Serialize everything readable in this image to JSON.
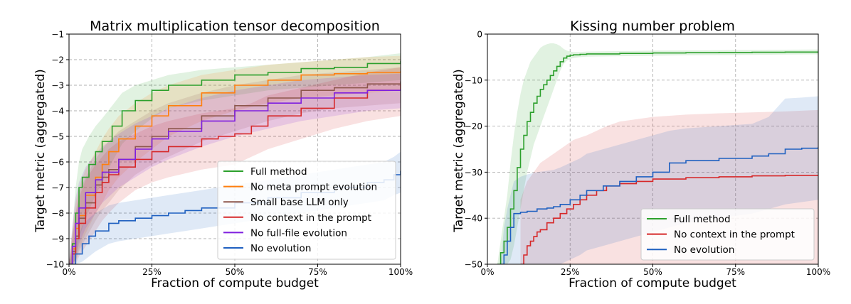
{
  "chart_data": [
    {
      "type": "line",
      "title": "Matrix multiplication tensor decomposition",
      "xlabel": "Fraction of compute budget",
      "ylabel": "Target metric (aggregated)",
      "xlim": [
        0,
        100
      ],
      "ylim": [
        -10,
        -1
      ],
      "x_ticks": [
        0,
        25,
        50,
        75,
        100
      ],
      "x_tick_labels": [
        "0%",
        "25%",
        "50%",
        "75%",
        "100%"
      ],
      "y_ticks": [
        -10,
        -9,
        -8,
        -7,
        -6,
        -5,
        -4,
        -3,
        -2,
        -1
      ],
      "y_tick_labels": [
        "−10",
        "−9",
        "−8",
        "−7",
        "−6",
        "−5",
        "−4",
        "−3",
        "−2",
        "−1"
      ],
      "grid": true,
      "legend_position": "lower-right",
      "series": [
        {
          "name": "Full method",
          "color": "#2ca02c",
          "x": [
            0,
            1,
            2,
            3,
            4,
            6,
            8,
            10,
            13,
            16,
            20,
            25,
            30,
            40,
            50,
            60,
            70,
            80,
            90,
            100
          ],
          "y": [
            -10,
            -9.2,
            -8,
            -7,
            -6.6,
            -6.1,
            -5.6,
            -5.2,
            -4.6,
            -4.0,
            -3.6,
            -3.2,
            -3.0,
            -2.8,
            -2.6,
            -2.5,
            -2.35,
            -2.3,
            -2.15,
            -2.05
          ],
          "band_low": [
            -10,
            -10,
            -9.8,
            -9.0,
            -8.6,
            -7.9,
            -7.3,
            -6.8,
            -6.0,
            -5.3,
            -4.8,
            -4.3,
            -3.9,
            -3.6,
            -3.4,
            -3.2,
            -3.1,
            -3.0,
            -2.9,
            -2.8
          ],
          "band_high": [
            -10,
            -8.6,
            -7.0,
            -6.0,
            -5.5,
            -5.0,
            -4.6,
            -4.3,
            -3.8,
            -3.3,
            -3.0,
            -2.8,
            -2.6,
            -2.4,
            -2.3,
            -2.2,
            -2.1,
            -2.0,
            -1.9,
            -1.75
          ]
        },
        {
          "name": "No meta prompt evolution",
          "color": "#ff7f0e",
          "x": [
            0,
            1,
            2,
            3,
            5,
            8,
            10,
            12,
            15,
            20,
            25,
            30,
            40,
            50,
            60,
            70,
            80,
            90,
            100
          ],
          "y": [
            -10,
            -9.4,
            -8.6,
            -8.1,
            -7.3,
            -6.6,
            -6.1,
            -5.6,
            -5.1,
            -4.6,
            -4.2,
            -3.8,
            -3.3,
            -3.0,
            -2.8,
            -2.6,
            -2.55,
            -2.5,
            -2.45
          ],
          "band_low": [
            -10,
            -10,
            -9.9,
            -9.4,
            -8.8,
            -8.0,
            -7.6,
            -7.1,
            -6.6,
            -6.0,
            -5.5,
            -5.0,
            -4.4,
            -4.0,
            -3.7,
            -3.5,
            -3.4,
            -3.3,
            -3.2
          ],
          "band_high": [
            -10,
            -8.7,
            -7.6,
            -7.0,
            -6.3,
            -5.6,
            -5.1,
            -4.7,
            -4.2,
            -3.7,
            -3.3,
            -3.0,
            -2.6,
            -2.4,
            -2.2,
            -2.1,
            -2.0,
            -1.9,
            -1.85
          ]
        },
        {
          "name": "Small base LLM only",
          "color": "#8c564b",
          "x": [
            0,
            1,
            2,
            3,
            5,
            8,
            10,
            12,
            15,
            20,
            25,
            30,
            40,
            50,
            60,
            70,
            80,
            90,
            100
          ],
          "y": [
            -10,
            -9.5,
            -8.9,
            -8.2,
            -7.6,
            -6.9,
            -6.6,
            -6.3,
            -5.9,
            -5.4,
            -5.0,
            -4.7,
            -4.2,
            -3.8,
            -3.5,
            -3.2,
            -3.1,
            -2.95,
            -2.85
          ],
          "band_low": [
            -10,
            -10,
            -9.9,
            -9.5,
            -9.0,
            -8.3,
            -7.9,
            -7.6,
            -7.1,
            -6.5,
            -6.1,
            -5.8,
            -5.2,
            -4.8,
            -4.4,
            -4.1,
            -3.9,
            -3.8,
            -3.7
          ],
          "band_high": [
            -10,
            -8.9,
            -8.0,
            -7.2,
            -6.6,
            -5.9,
            -5.5,
            -5.2,
            -4.8,
            -4.4,
            -4.0,
            -3.7,
            -3.3,
            -3.0,
            -2.8,
            -2.6,
            -2.5,
            -2.4,
            -2.3
          ]
        },
        {
          "name": "No context in the prompt",
          "color": "#d62728",
          "x": [
            0,
            1,
            2,
            3,
            5,
            8,
            10,
            12,
            15,
            20,
            25,
            30,
            40,
            45,
            50,
            55,
            60,
            70,
            80,
            90,
            100
          ],
          "y": [
            -10,
            -9.6,
            -9.0,
            -8.4,
            -7.8,
            -7.2,
            -6.8,
            -6.5,
            -6.2,
            -5.9,
            -5.6,
            -5.4,
            -5.1,
            -5.0,
            -4.9,
            -4.6,
            -4.2,
            -3.9,
            -3.5,
            -3.2,
            -2.95
          ],
          "band_low": [
            -10,
            -10,
            -10,
            -9.7,
            -9.3,
            -8.7,
            -8.3,
            -8.0,
            -7.6,
            -7.1,
            -6.8,
            -6.6,
            -6.3,
            -6.2,
            -6.1,
            -5.8,
            -5.5,
            -5.1,
            -4.7,
            -4.4,
            -4.2
          ],
          "band_high": [
            -10,
            -9.0,
            -8.1,
            -7.4,
            -6.7,
            -6.1,
            -5.8,
            -5.5,
            -5.2,
            -4.9,
            -4.6,
            -4.4,
            -4.1,
            -4.0,
            -3.9,
            -3.7,
            -3.4,
            -3.1,
            -2.8,
            -2.5,
            -2.3
          ]
        },
        {
          "name": "No full-file evolution",
          "color": "#7f1fdf",
          "x": [
            0,
            1,
            2,
            3,
            5,
            8,
            10,
            15,
            20,
            25,
            30,
            40,
            50,
            60,
            70,
            80,
            90,
            100
          ],
          "y": [
            -10,
            -9.3,
            -8.4,
            -7.8,
            -7.2,
            -6.7,
            -6.4,
            -5.9,
            -5.5,
            -5.1,
            -4.8,
            -4.4,
            -4.0,
            -3.7,
            -3.5,
            -3.3,
            -3.2,
            -3.15
          ],
          "band_low": [
            -10,
            -10,
            -9.8,
            -9.2,
            -8.6,
            -8.0,
            -7.6,
            -7.0,
            -6.6,
            -6.2,
            -5.9,
            -5.4,
            -5.0,
            -4.7,
            -4.4,
            -4.2,
            -4.0,
            -3.9
          ],
          "band_high": [
            -10,
            -8.5,
            -7.4,
            -6.8,
            -6.2,
            -5.7,
            -5.4,
            -4.9,
            -4.5,
            -4.2,
            -3.9,
            -3.5,
            -3.2,
            -3.0,
            -2.8,
            -2.7,
            -2.6,
            -2.55
          ]
        },
        {
          "name": "No evolution",
          "color": "#1f60c0",
          "x": [
            0,
            2,
            4,
            6,
            8,
            12,
            15,
            20,
            25,
            30,
            35,
            40,
            50,
            60,
            70,
            80,
            90,
            95,
            98,
            100
          ],
          "y": [
            -10,
            -9.6,
            -9.2,
            -8.9,
            -8.7,
            -8.4,
            -8.3,
            -8.2,
            -8.1,
            -8.0,
            -7.9,
            -7.8,
            -7.6,
            -7.4,
            -7.2,
            -7.0,
            -6.8,
            -6.7,
            -6.5,
            -6.35
          ],
          "band_low": [
            -10,
            -10,
            -9.9,
            -9.7,
            -9.5,
            -9.2,
            -9.1,
            -9.0,
            -8.9,
            -8.8,
            -8.7,
            -8.6,
            -8.4,
            -8.2,
            -8.0,
            -7.8,
            -7.6,
            -7.5,
            -7.3,
            -7.2
          ],
          "band_high": [
            -10,
            -9.2,
            -8.5,
            -8.2,
            -8.0,
            -7.7,
            -7.6,
            -7.5,
            -7.4,
            -7.3,
            -7.2,
            -7.1,
            -6.9,
            -6.7,
            -6.5,
            -6.3,
            -6.1,
            -6.0,
            -5.8,
            -5.6
          ]
        }
      ]
    },
    {
      "type": "line",
      "title": "Kissing number problem",
      "xlabel": "Fraction of compute budget",
      "ylabel": "Target metric (aggregated)",
      "xlim": [
        0,
        100
      ],
      "ylim": [
        -50,
        0
      ],
      "x_ticks": [
        0,
        25,
        50,
        75,
        100
      ],
      "x_tick_labels": [
        "0%",
        "25%",
        "50%",
        "75%",
        "100%"
      ],
      "y_ticks": [
        -50,
        -40,
        -30,
        -20,
        -10,
        0
      ],
      "y_tick_labels": [
        "−50",
        "−40",
        "−30",
        "−20",
        "−10",
        "0"
      ],
      "grid": true,
      "legend_position": "lower-right",
      "series": [
        {
          "name": "Full method",
          "color": "#2ca02c",
          "x": [
            3,
            4,
            5,
            6,
            7,
            8,
            9,
            10,
            11,
            12,
            13,
            14,
            15,
            16,
            17,
            18,
            19,
            20,
            21,
            22,
            23,
            24,
            25,
            26,
            28,
            30,
            40,
            50,
            60,
            70,
            80,
            90,
            100
          ],
          "y": [
            -50,
            -47.5,
            -45,
            -42,
            -38,
            -34,
            -29,
            -25,
            -22,
            -19,
            -17,
            -15,
            -13.5,
            -12,
            -11,
            -10,
            -9,
            -8,
            -7,
            -6,
            -5.2,
            -4.8,
            -4.6,
            -4.5,
            -4.4,
            -4.3,
            -4.2,
            -4.1,
            -4.05,
            -4.0,
            -3.95,
            -3.9,
            -3.85
          ],
          "band_low": [
            -50,
            -50,
            -50,
            -50,
            -49,
            -46,
            -42,
            -38,
            -34,
            -30,
            -27,
            -24,
            -22,
            -20,
            -18,
            -16,
            -14,
            -12,
            -10,
            -8,
            -6.5,
            -5.8,
            -5.4,
            -5.2,
            -5.0,
            -4.9,
            -4.8,
            -4.7,
            -4.6,
            -4.55,
            -4.5,
            -4.45,
            -4.4
          ],
          "band_high": [
            -50,
            -45,
            -40,
            -35,
            -28,
            -22,
            -17,
            -13,
            -10,
            -8,
            -6,
            -5,
            -4,
            -3,
            -2.5,
            -2.2,
            -2.0,
            -2.0,
            -2.2,
            -2.6,
            -3.2,
            -3.6,
            -3.8,
            -3.9,
            -3.9,
            -3.8,
            -3.7,
            -3.6,
            -3.55,
            -3.5,
            -3.45,
            -3.4,
            -3.35
          ]
        },
        {
          "name": "No context in the prompt",
          "color": "#d62728",
          "x": [
            10,
            11,
            12,
            13,
            14,
            15,
            16,
            18,
            20,
            22,
            24,
            26,
            28,
            30,
            33,
            36,
            40,
            45,
            50,
            60,
            70,
            80,
            90,
            100
          ],
          "y": [
            -50,
            -48,
            -46,
            -45,
            -44,
            -43,
            -42.5,
            -41,
            -40,
            -39,
            -38,
            -37,
            -36,
            -35,
            -34,
            -33,
            -32.5,
            -32,
            -31.5,
            -31.2,
            -31,
            -30.8,
            -30.7,
            -30.6
          ],
          "band_low": [
            -50,
            -50,
            -50,
            -50,
            -50,
            -50,
            -50,
            -50,
            -50,
            -50,
            -50,
            -50,
            -50,
            -50,
            -50,
            -50,
            -50,
            -50,
            -50,
            -50,
            -50,
            -50,
            -50,
            -50
          ],
          "band_high": [
            -36,
            -34,
            -32,
            -31,
            -30,
            -29,
            -28,
            -27,
            -26,
            -25,
            -24,
            -23,
            -22.5,
            -22,
            -21,
            -20,
            -19,
            -18.5,
            -18,
            -17.5,
            -17.2,
            -17,
            -16.8,
            -16.5
          ]
        },
        {
          "name": "No evolution",
          "color": "#1f60c0",
          "x": [
            4,
            5,
            6,
            7,
            8,
            10,
            12,
            15,
            18,
            20,
            22,
            25,
            28,
            30,
            35,
            40,
            45,
            50,
            55,
            60,
            70,
            80,
            85,
            90,
            95,
            100
          ],
          "y": [
            -50,
            -48,
            -45,
            -42,
            -39,
            -38.7,
            -38.5,
            -38,
            -37.8,
            -37.5,
            -37,
            -36,
            -35,
            -34,
            -33,
            -32,
            -31,
            -30,
            -28,
            -27.5,
            -27,
            -26.5,
            -26,
            -25,
            -24.8,
            -24.5
          ],
          "band_low": [
            -50,
            -50,
            -50,
            -50,
            -50,
            -50,
            -50,
            -50,
            -50,
            -50,
            -50,
            -49,
            -48,
            -47,
            -46,
            -45,
            -44,
            -43,
            -42,
            -41,
            -40,
            -39,
            -38,
            -37,
            -36.5,
            -36
          ],
          "band_high": [
            -50,
            -42,
            -38,
            -35,
            -32,
            -31,
            -30.5,
            -30,
            -29.7,
            -29.5,
            -29,
            -28,
            -27,
            -26,
            -25,
            -24,
            -23,
            -22,
            -21,
            -20.5,
            -20,
            -19.5,
            -18,
            -14,
            -13.8,
            -13.5
          ]
        }
      ]
    }
  ]
}
